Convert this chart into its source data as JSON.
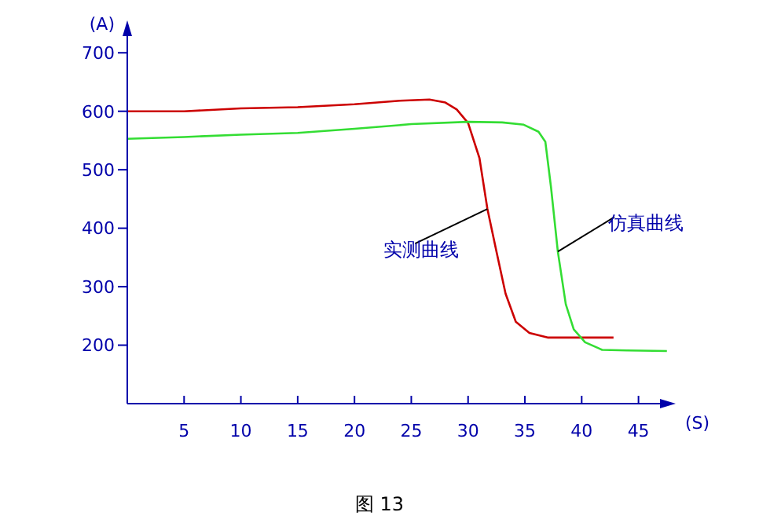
{
  "chart_data": {
    "type": "line",
    "xlabel": "(S)",
    "ylabel": "(A)",
    "xlim": [
      0,
      48
    ],
    "xticks": [
      5,
      10,
      15,
      20,
      25,
      30,
      35,
      40,
      45
    ],
    "ylim": [
      100,
      750
    ],
    "yticks": [
      200,
      300,
      400,
      500,
      600,
      700
    ],
    "marker": "none",
    "line_style": "solid",
    "series": [
      {
        "color": "#cc0000",
        "x": [
          0,
          5,
          10,
          15,
          20,
          24,
          26.6,
          28,
          29,
          30,
          31,
          31.7,
          32.5,
          33.3,
          34.2,
          35.4,
          37,
          40,
          42.8
        ],
        "values": [
          600,
          600,
          605,
          607,
          612,
          618,
          620,
          615,
          603,
          580,
          520,
          433,
          360,
          288,
          240,
          221,
          213,
          213,
          213
        ]
      },
      {
        "color": "#33dd33",
        "x": [
          0,
          5,
          10,
          15,
          20,
          25,
          30,
          33,
          34.9,
          36.2,
          36.8,
          37.3,
          37.9,
          38.6,
          39.3,
          40.3,
          41.8,
          44,
          47.5
        ],
        "values": [
          553,
          556,
          560,
          563,
          570,
          578,
          582,
          581,
          577,
          565,
          548,
          470,
          360,
          270,
          227,
          205,
          192,
          191,
          190
        ]
      }
    ],
    "annotations": [
      {
        "text": "实测曲线",
        "x": 31.7,
        "y": 433
      },
      {
        "text": "仿真曲线",
        "x": 37.9,
        "y": 360
      },
      "图 13"
    ]
  }
}
